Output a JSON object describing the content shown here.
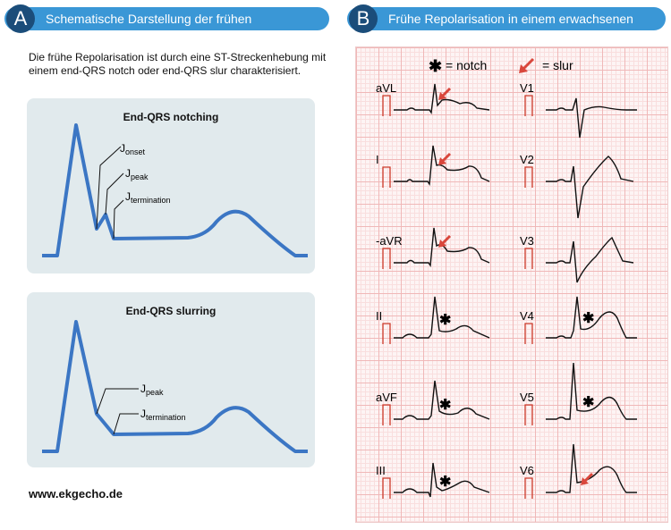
{
  "panel_a": {
    "badge": "A",
    "header": "Schematische Darstellung der frühen Repolarisation",
    "intro": "Die frühe Repolarisation ist durch eine ST-Streckenhebung mit einem end-QRS notch oder end-QRS slur charakterisiert.",
    "notching": {
      "title": "End-QRS notching",
      "labels": [
        {
          "base": "J",
          "sub": "onset"
        },
        {
          "base": "J",
          "sub": "peak"
        },
        {
          "base": "J",
          "sub": "termination"
        }
      ]
    },
    "slurring": {
      "title": "End-QRS slurring",
      "labels": [
        {
          "base": "J",
          "sub": "peak"
        },
        {
          "base": "J",
          "sub": "termination"
        }
      ]
    },
    "website": "www.ekgecho.de"
  },
  "panel_b": {
    "badge": "B",
    "header": "Frühe Repolarisation in einem erwachsenen Mann",
    "legend": {
      "notch_symbol": "✱",
      "notch_label": "= notch",
      "slur_label": "= slur"
    },
    "leads_left": [
      "aVL",
      "I",
      "-aVR",
      "II",
      "aVF",
      "III"
    ],
    "leads_right": [
      "V1",
      "V2",
      "V3",
      "V4",
      "V5",
      "V6"
    ]
  },
  "colors": {
    "header_blue": "#3a97d6",
    "badge_navy": "#1b4d7a",
    "waveform_blue": "#3b76c4",
    "panel_bg": "#e1eaed",
    "marker_red": "#d9473c",
    "calib_red": "#cc3a2a"
  }
}
